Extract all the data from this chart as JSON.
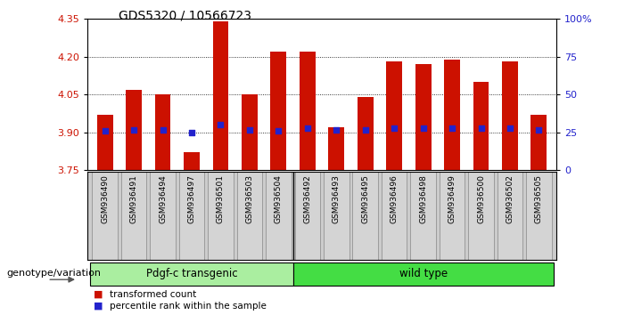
{
  "title": "GDS5320 / 10566723",
  "categories": [
    "GSM936490",
    "GSM936491",
    "GSM936494",
    "GSM936497",
    "GSM936501",
    "GSM936503",
    "GSM936504",
    "GSM936492",
    "GSM936493",
    "GSM936495",
    "GSM936496",
    "GSM936498",
    "GSM936499",
    "GSM936500",
    "GSM936502",
    "GSM936505"
  ],
  "bar_values": [
    3.97,
    4.07,
    4.05,
    3.82,
    4.34,
    4.05,
    4.22,
    4.22,
    3.92,
    4.04,
    4.18,
    4.17,
    4.19,
    4.1,
    4.18,
    3.97
  ],
  "bar_base": 3.75,
  "percentile_values": [
    3.905,
    3.91,
    3.91,
    3.9,
    3.93,
    3.91,
    3.905,
    3.915,
    3.91,
    3.91,
    3.915,
    3.915,
    3.915,
    3.915,
    3.915,
    3.91
  ],
  "ylim": [
    3.75,
    4.35
  ],
  "yticks_left": [
    3.75,
    3.9,
    4.05,
    4.2,
    4.35
  ],
  "yticks_right": [
    0,
    25,
    50,
    75,
    100
  ],
  "bar_color": "#cc1100",
  "dot_color": "#2222cc",
  "group1_label": "Pdgf-c transgenic",
  "group1_count": 7,
  "group2_label": "wild type",
  "group2_count": 9,
  "group1_color": "#aaeea0",
  "group2_color": "#44dd44",
  "genotype_label": "genotype/variation",
  "legend_bar": "transformed count",
  "legend_dot": "percentile rank within the sample",
  "xlabel_bg": "#cccccc",
  "xlabel_box": "#d4d4d4"
}
